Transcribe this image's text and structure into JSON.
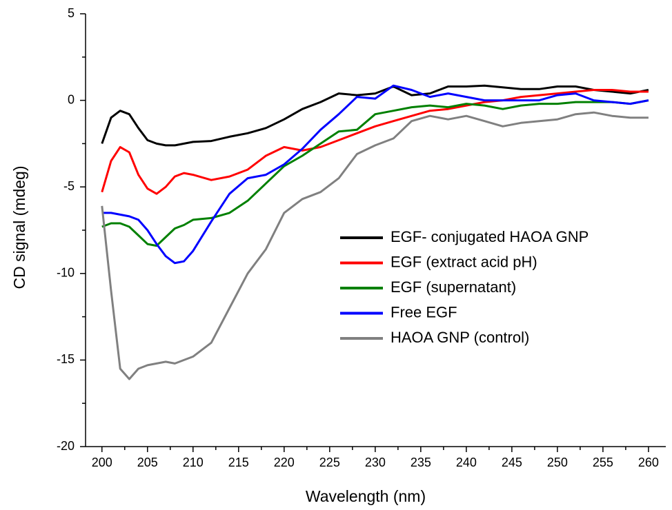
{
  "chart_data": {
    "type": "line",
    "xlabel": "Wavelength (nm)",
    "ylabel": "CD signal (mdeg)",
    "x": [
      200,
      201,
      202,
      203,
      204,
      205,
      206,
      207,
      208,
      209,
      210,
      212,
      214,
      216,
      218,
      220,
      222,
      224,
      226,
      228,
      230,
      232,
      234,
      236,
      238,
      240,
      242,
      244,
      246,
      248,
      250,
      252,
      254,
      256,
      258,
      260
    ],
    "series": [
      {
        "name": "EGF- conjugated HAOA GNP",
        "color": "#000000",
        "values": [
          -2.5,
          -1.0,
          -0.6,
          -0.8,
          -1.6,
          -2.3,
          -2.5,
          -2.6,
          -2.6,
          -2.5,
          -2.4,
          -2.35,
          -2.1,
          -1.9,
          -1.6,
          -1.1,
          -0.5,
          -0.1,
          0.4,
          0.3,
          0.4,
          0.8,
          0.3,
          0.4,
          0.8,
          0.8,
          0.85,
          0.75,
          0.65,
          0.65,
          0.8,
          0.8,
          0.6,
          0.5,
          0.4,
          0.6
        ]
      },
      {
        "name": "EGF (extract acid pH)",
        "color": "#ff0000",
        "values": [
          -5.3,
          -3.5,
          -2.7,
          -3.0,
          -4.3,
          -5.1,
          -5.4,
          -5.0,
          -4.4,
          -4.2,
          -4.3,
          -4.6,
          -4.4,
          -4.0,
          -3.2,
          -2.7,
          -2.9,
          -2.7,
          -2.3,
          -1.9,
          -1.5,
          -1.2,
          -0.9,
          -0.6,
          -0.5,
          -0.3,
          -0.1,
          0.0,
          0.2,
          0.3,
          0.4,
          0.5,
          0.6,
          0.6,
          0.5,
          0.5
        ]
      },
      {
        "name": "EGF (supernatant)",
        "color": "#008000",
        "values": [
          -7.3,
          -7.1,
          -7.1,
          -7.3,
          -7.8,
          -8.3,
          -8.4,
          -7.9,
          -7.4,
          -7.2,
          -6.9,
          -6.8,
          -6.5,
          -5.8,
          -4.8,
          -3.8,
          -3.2,
          -2.5,
          -1.8,
          -1.7,
          -0.8,
          -0.6,
          -0.4,
          -0.3,
          -0.4,
          -0.2,
          -0.3,
          -0.5,
          -0.3,
          -0.2,
          -0.2,
          -0.1,
          -0.1,
          -0.1,
          -0.2,
          0.0
        ]
      },
      {
        "name": "Free EGF",
        "color": "#0000ff",
        "values": [
          -6.5,
          -6.5,
          -6.6,
          -6.7,
          -6.9,
          -7.5,
          -8.3,
          -9.0,
          -9.4,
          -9.3,
          -8.7,
          -7.0,
          -5.4,
          -4.5,
          -4.3,
          -3.7,
          -2.8,
          -1.7,
          -0.8,
          0.2,
          0.1,
          0.85,
          0.6,
          0.2,
          0.4,
          0.2,
          0.0,
          0.0,
          0.0,
          0.0,
          0.3,
          0.4,
          0.0,
          -0.1,
          -0.2,
          0.0
        ]
      },
      {
        "name": "HAOA GNP (control)",
        "color": "#808080",
        "values": [
          -6.1,
          -11,
          -15.5,
          -16.1,
          -15.5,
          -15.3,
          -15.2,
          -15.1,
          -15.2,
          -15.0,
          -14.8,
          -14.0,
          -12.0,
          -10.0,
          -8.6,
          -6.5,
          -5.7,
          -5.3,
          -4.5,
          -3.1,
          -2.6,
          -2.2,
          -1.2,
          -0.9,
          -1.1,
          -0.9,
          -1.2,
          -1.5,
          -1.3,
          -1.2,
          -1.1,
          -0.8,
          -0.7,
          -0.9,
          -1.0,
          -1.0
        ]
      }
    ],
    "xlim": [
      198.2,
      261.9
    ],
    "ylim": [
      -20,
      5
    ],
    "xticks": [
      200,
      205,
      210,
      215,
      220,
      225,
      230,
      235,
      240,
      245,
      250,
      255,
      260
    ],
    "yticks": [
      -20,
      -15,
      -10,
      -5,
      0,
      5
    ],
    "xminorticks": [
      202.5,
      207.5,
      212.5,
      217.5,
      222.5,
      227.5,
      232.5,
      237.5,
      242.5,
      247.5,
      252.5,
      257.5
    ],
    "yminorticks": [
      -17.5,
      -12.5,
      -7.5,
      -2.5,
      2.5
    ],
    "legend": "center right",
    "grid": false
  }
}
